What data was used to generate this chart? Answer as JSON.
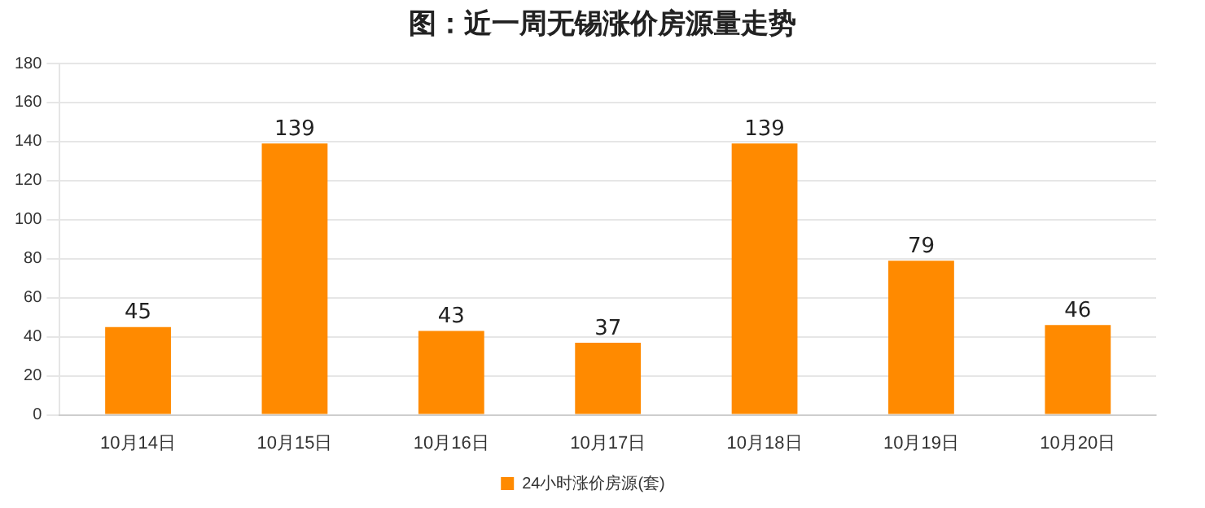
{
  "chart_data": {
    "type": "bar",
    "title": "图：近一周无锡涨价房源量走势",
    "categories": [
      "10月14日",
      "10月15日",
      "10月16日",
      "10月17日",
      "10月18日",
      "10月19日",
      "10月20日"
    ],
    "series": [
      {
        "name": "24小时涨价房源(套)",
        "color": "#ff8a00",
        "values": [
          45,
          139,
          43,
          37,
          139,
          79,
          46
        ]
      }
    ],
    "ylim": [
      0,
      180
    ],
    "yticks": [
      0,
      20,
      40,
      60,
      80,
      100,
      120,
      140,
      160,
      180
    ],
    "grid": "y",
    "legend": "bottom",
    "data_labels": true
  }
}
